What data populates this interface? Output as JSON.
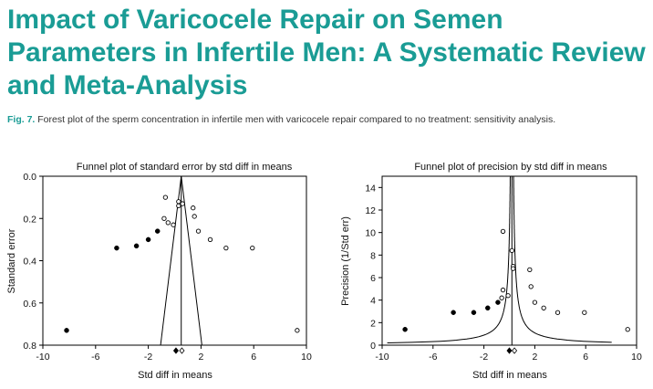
{
  "article": {
    "title": "Impact of Varicocele Repair on Semen Parameters in Infertile Men: A Systematic Review and Meta-Analysis",
    "figure_label": "Fig. 7.",
    "figure_caption": "Forest plot of the sperm concentration in infertile men with varicocele repair compared to no treatment: sensitivity analysis."
  },
  "chart_data": [
    {
      "type": "scatter",
      "title": "Funnel plot of standard error by std diff in means",
      "xlabel": "Std diff in means",
      "ylabel": "Standard error",
      "xlim": [
        -10,
        10
      ],
      "ylim": [
        0.0,
        0.8
      ],
      "y_inverted": true,
      "xticks": [
        "-10",
        "-6",
        "-2",
        "2",
        "6",
        "10"
      ],
      "yticks": [
        "0.0",
        "0.2",
        "0.4",
        "0.6",
        "0.8"
      ],
      "center_x": 0.5,
      "funnel_lines": true,
      "grid": false,
      "observed_points": [
        {
          "x": -0.7,
          "y": 0.1
        },
        {
          "x": 0.3,
          "y": 0.12
        },
        {
          "x": 0.6,
          "y": 0.13
        },
        {
          "x": 0.3,
          "y": 0.14
        },
        {
          "x": 1.4,
          "y": 0.15
        },
        {
          "x": -0.8,
          "y": 0.2
        },
        {
          "x": 1.5,
          "y": 0.19
        },
        {
          "x": -0.5,
          "y": 0.22
        },
        {
          "x": -0.1,
          "y": 0.23
        },
        {
          "x": 1.8,
          "y": 0.26
        },
        {
          "x": 2.7,
          "y": 0.3
        },
        {
          "x": 3.9,
          "y": 0.34
        },
        {
          "x": 5.9,
          "y": 0.34
        },
        {
          "x": 9.3,
          "y": 0.73
        }
      ],
      "imputed_points": [
        {
          "x": -1.3,
          "y": 0.26
        },
        {
          "x": -2.0,
          "y": 0.3
        },
        {
          "x": -2.9,
          "y": 0.33
        },
        {
          "x": -4.4,
          "y": 0.34
        },
        {
          "x": -8.2,
          "y": 0.73
        }
      ],
      "combined_observed": 0.55,
      "combined_adjusted": 0.1
    },
    {
      "type": "scatter",
      "title": "Funnel plot of precision by std diff in means",
      "xlabel": "Std diff in means",
      "ylabel": "Precision (1/Std err)",
      "xlim": [
        -10,
        10
      ],
      "ylim": [
        0,
        15
      ],
      "xticks": [
        "-10",
        "-6",
        "-2",
        "2",
        "6",
        "10"
      ],
      "yticks": [
        "0",
        "2",
        "4",
        "6",
        "8",
        "10",
        "12",
        "14"
      ],
      "center_x": 0.2,
      "funnel_lines": true,
      "grid": false,
      "observed_points": [
        {
          "x": -0.5,
          "y": 10.1
        },
        {
          "x": 0.2,
          "y": 8.4
        },
        {
          "x": 0.3,
          "y": 7.0
        },
        {
          "x": 0.3,
          "y": 6.8
        },
        {
          "x": 1.6,
          "y": 6.7
        },
        {
          "x": 1.7,
          "y": 5.2
        },
        {
          "x": -0.5,
          "y": 4.9
        },
        {
          "x": -0.1,
          "y": 4.4
        },
        {
          "x": -0.6,
          "y": 4.2
        },
        {
          "x": 2.0,
          "y": 3.8
        },
        {
          "x": 2.7,
          "y": 3.3
        },
        {
          "x": 3.8,
          "y": 2.9
        },
        {
          "x": 5.9,
          "y": 2.9
        },
        {
          "x": 9.3,
          "y": 1.4
        }
      ],
      "imputed_points": [
        {
          "x": -0.9,
          "y": 3.8
        },
        {
          "x": -1.7,
          "y": 3.3
        },
        {
          "x": -2.8,
          "y": 2.9
        },
        {
          "x": -4.4,
          "y": 2.9
        },
        {
          "x": -8.2,
          "y": 1.4
        }
      ],
      "combined_observed": 0.4,
      "combined_adjusted": 0.0
    }
  ]
}
